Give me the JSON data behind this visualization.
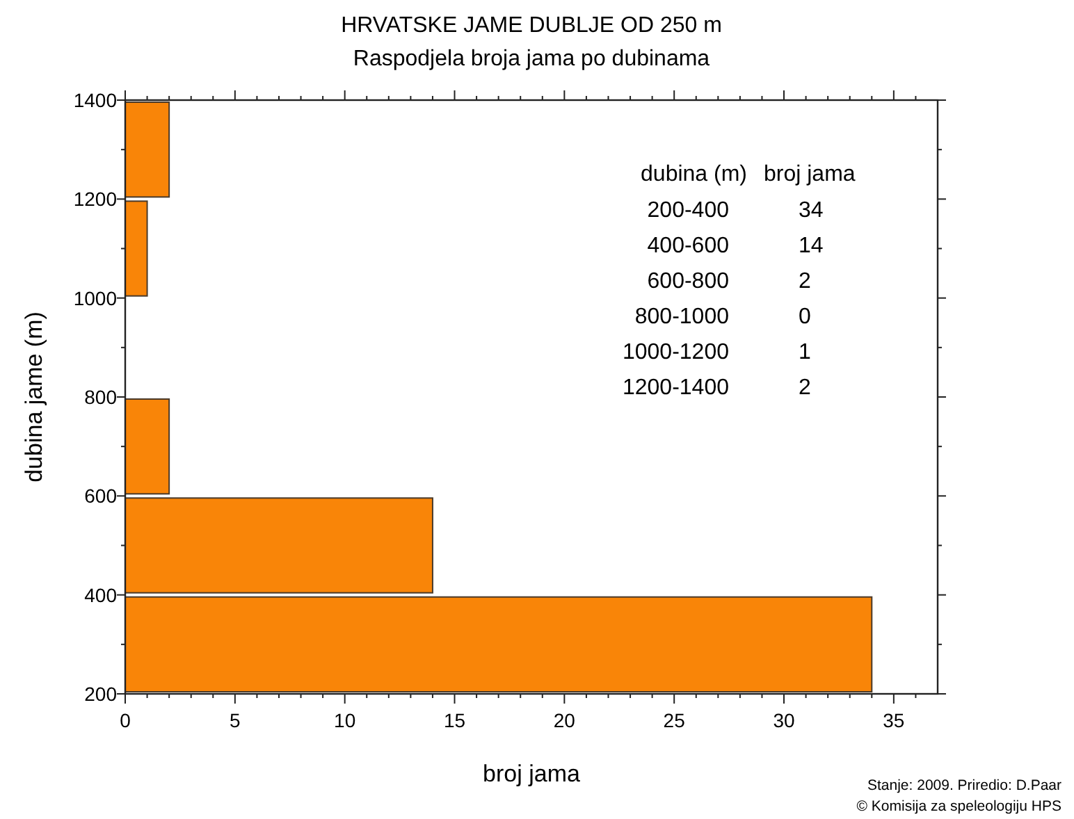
{
  "chart_data": {
    "type": "histogram",
    "orientation": "horizontal",
    "title": "HRVATSKE JAME DUBLJE OD 250 m",
    "subtitle": "Raspodjela broja jama po dubinama",
    "xlabel": "broj jama",
    "ylabel": "dubina jame (m)",
    "bins": [
      200,
      400,
      600,
      800,
      1000,
      1200,
      1400
    ],
    "values": [
      34,
      14,
      2,
      0,
      1,
      2
    ],
    "color": "#f98508",
    "xlim": [
      0,
      37
    ],
    "xticks": [
      0,
      5,
      10,
      15,
      20,
      25,
      30,
      35
    ],
    "ylim": [
      200,
      1400
    ],
    "yticks": [
      200,
      400,
      600,
      800,
      1000,
      1200,
      1400
    ],
    "grid": false,
    "annotations": [
      "dubina (m)",
      "broj jama",
      "200-400",
      "34",
      "400-600",
      "14",
      "600-800",
      "2",
      "800-1000",
      "0",
      "1000-1200",
      "1",
      "1200-1400",
      "2",
      "Stanje: 2009.  Priredio: D.Paar",
      "© Komisija za speleologiju HPS"
    ]
  }
}
